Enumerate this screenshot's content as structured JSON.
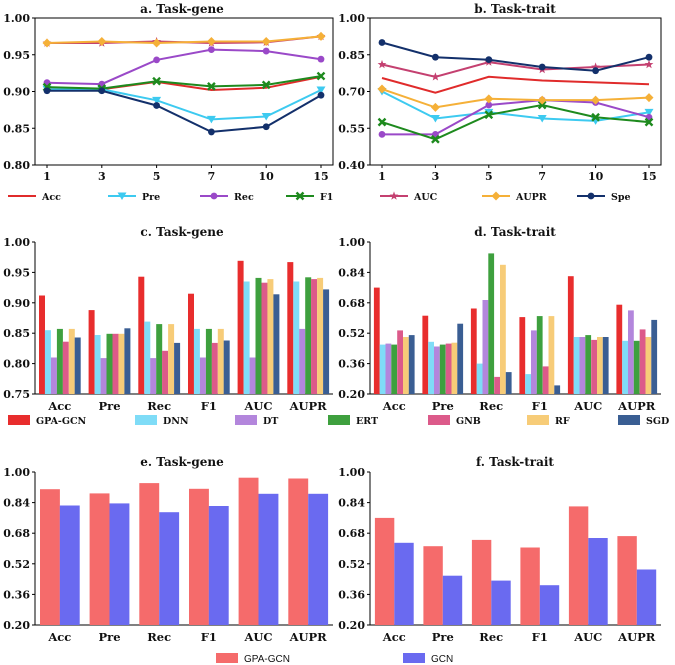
{
  "colors": {
    "Acc": "#e02b2b",
    "Pre": "#3dcaf0",
    "Rec": "#9a49c8",
    "F1": "#1e8a1e",
    "AUC": "#c44070",
    "AUPR": "#f5b038",
    "Spe": "#13306b",
    "GPA-GCN": "#e82d2d",
    "DNN": "#7fdcf7",
    "DT": "#b386dc",
    "ERT": "#3ea03e",
    "GNB": "#dc5a8a",
    "RF": "#f7cc78",
    "SGD": "#3a5e93",
    "GPA-GCN-f": "#f56b6b",
    "GCN": "#6a6af0"
  },
  "line_legend": {
    "items": [
      {
        "name": "Acc",
        "marker": "none"
      },
      {
        "name": "Pre",
        "marker": "triangle-down"
      },
      {
        "name": "Rec",
        "marker": "circle"
      },
      {
        "name": "F1",
        "marker": "x"
      },
      {
        "name": "AUC",
        "marker": "star"
      },
      {
        "name": "AUPR",
        "marker": "diamond"
      },
      {
        "name": "Spe",
        "marker": "circle"
      }
    ]
  },
  "bar_legend_7": [
    "GPA-GCN",
    "DNN",
    "DT",
    "ERT",
    "GNB",
    "RF",
    "SGD"
  ],
  "bar_legend_2": [
    "GPA-GCN",
    "GCN"
  ],
  "chart_data": [
    {
      "id": "a",
      "type": "line",
      "title": "a. Task-gene",
      "x": [
        "1",
        "3",
        "5",
        "7",
        "10",
        "15"
      ],
      "ylim": [
        0.8,
        1.0
      ],
      "yticks": [
        "0.80",
        "0.85",
        "0.90",
        "0.95",
        "1.00"
      ],
      "series": [
        {
          "name": "Acc",
          "values": [
            0.903,
            0.903,
            0.913,
            0.902,
            0.905,
            0.92
          ]
        },
        {
          "name": "Pre",
          "values": [
            0.903,
            0.903,
            0.888,
            0.862,
            0.866,
            0.902
          ]
        },
        {
          "name": "Rec",
          "values": [
            0.912,
            0.91,
            0.943,
            0.957,
            0.955,
            0.944
          ]
        },
        {
          "name": "F1",
          "values": [
            0.906,
            0.904,
            0.914,
            0.907,
            0.909,
            0.921
          ]
        },
        {
          "name": "AUC",
          "values": [
            0.966,
            0.966,
            0.968,
            0.966,
            0.967,
            0.975
          ]
        },
        {
          "name": "AUPR",
          "values": [
            0.966,
            0.968,
            0.966,
            0.968,
            0.968,
            0.975
          ]
        },
        {
          "name": "Spe",
          "values": [
            0.901,
            0.901,
            0.881,
            0.845,
            0.852,
            0.895
          ]
        }
      ]
    },
    {
      "id": "b",
      "type": "line",
      "title": "b. Task-trait",
      "x": [
        "1",
        "3",
        "5",
        "7",
        "10",
        "15"
      ],
      "ylim": [
        0.4,
        1.0
      ],
      "yticks": [
        "0.40",
        "0.55",
        "0.70",
        "0.85",
        "1.00"
      ],
      "series": [
        {
          "name": "Acc",
          "values": [
            0.755,
            0.695,
            0.76,
            0.745,
            0.737,
            0.73
          ]
        },
        {
          "name": "Pre",
          "values": [
            0.7,
            0.59,
            0.615,
            0.59,
            0.58,
            0.615
          ]
        },
        {
          "name": "Rec",
          "values": [
            0.525,
            0.525,
            0.645,
            0.665,
            0.655,
            0.595
          ]
        },
        {
          "name": "F1",
          "values": [
            0.575,
            0.505,
            0.605,
            0.645,
            0.595,
            0.575
          ]
        },
        {
          "name": "AUC",
          "values": [
            0.81,
            0.76,
            0.82,
            0.79,
            0.8,
            0.81
          ]
        },
        {
          "name": "AUPR",
          "values": [
            0.71,
            0.635,
            0.67,
            0.665,
            0.665,
            0.675
          ]
        },
        {
          "name": "Spe",
          "values": [
            0.9,
            0.84,
            0.83,
            0.8,
            0.785,
            0.84
          ]
        }
      ]
    },
    {
      "id": "c",
      "type": "bar",
      "title": "c. Task-gene",
      "categories": [
        "Acc",
        "Pre",
        "Rec",
        "F1",
        "AUC",
        "AUPR"
      ],
      "ylim": [
        0.75,
        1.0
      ],
      "yticks": [
        "0.75",
        "0.80",
        "0.85",
        "0.90",
        "0.95",
        "1.00"
      ],
      "series": [
        {
          "name": "GPA-GCN",
          "values": [
            0.912,
            0.888,
            0.943,
            0.915,
            0.969,
            0.967
          ]
        },
        {
          "name": "DNN",
          "values": [
            0.855,
            0.847,
            0.869,
            0.857,
            0.935,
            0.935
          ]
        },
        {
          "name": "DT",
          "values": [
            0.81,
            0.809,
            0.809,
            0.81,
            0.81,
            0.857
          ]
        },
        {
          "name": "ERT",
          "values": [
            0.857,
            0.849,
            0.865,
            0.857,
            0.941,
            0.942
          ]
        },
        {
          "name": "GNB",
          "values": [
            0.836,
            0.849,
            0.821,
            0.834,
            0.933,
            0.939
          ]
        },
        {
          "name": "RF",
          "values": [
            0.857,
            0.849,
            0.865,
            0.857,
            0.939,
            0.941
          ]
        },
        {
          "name": "SGD",
          "values": [
            0.843,
            0.858,
            0.834,
            0.838,
            0.914,
            0.922
          ]
        }
      ]
    },
    {
      "id": "d",
      "type": "bar",
      "title": "d. Task-trait",
      "categories": [
        "Acc",
        "Pre",
        "Rec",
        "F1",
        "AUC",
        "AUPR"
      ],
      "ylim": [
        0.2,
        1.0
      ],
      "yticks": [
        "0.20",
        "0.36",
        "0.52",
        "0.68",
        "0.84",
        "1.00"
      ],
      "series": [
        {
          "name": "GPA-GCN",
          "values": [
            0.76,
            0.612,
            0.65,
            0.605,
            0.82,
            0.67
          ]
        },
        {
          "name": "DNN",
          "values": [
            0.46,
            0.475,
            0.36,
            0.305,
            0.5,
            0.48
          ]
        },
        {
          "name": "DT",
          "values": [
            0.465,
            0.45,
            0.695,
            0.535,
            0.5,
            0.64
          ]
        },
        {
          "name": "ERT",
          "values": [
            0.46,
            0.46,
            0.94,
            0.61,
            0.51,
            0.48
          ]
        },
        {
          "name": "GNB",
          "values": [
            0.535,
            0.465,
            0.29,
            0.345,
            0.485,
            0.54
          ]
        },
        {
          "name": "RF",
          "values": [
            0.5,
            0.47,
            0.88,
            0.61,
            0.5,
            0.5
          ]
        },
        {
          "name": "SGD",
          "values": [
            0.51,
            0.57,
            0.315,
            0.245,
            0.5,
            0.59
          ]
        }
      ]
    },
    {
      "id": "e",
      "type": "bar",
      "title": "e. Task-gene",
      "categories": [
        "Acc",
        "Pre",
        "Rec",
        "F1",
        "AUC",
        "AUPR"
      ],
      "ylim": [
        0.2,
        1.0
      ],
      "yticks": [
        "0.20",
        "0.36",
        "0.52",
        "0.68",
        "0.84",
        "1.00"
      ],
      "series": [
        {
          "name": "GPA-GCN",
          "values": [
            0.91,
            0.888,
            0.942,
            0.912,
            0.97,
            0.966
          ]
        },
        {
          "name": "GCN",
          "values": [
            0.825,
            0.836,
            0.79,
            0.822,
            0.886,
            0.886
          ]
        }
      ]
    },
    {
      "id": "f",
      "type": "bar",
      "title": "f. Task-trait",
      "categories": [
        "Acc",
        "Pre",
        "Rec",
        "F1",
        "AUC",
        "AUPR"
      ],
      "ylim": [
        0.2,
        1.0
      ],
      "yticks": [
        "0.20",
        "0.36",
        "0.52",
        "0.68",
        "0.84",
        "1.00"
      ],
      "series": [
        {
          "name": "GPA-GCN",
          "values": [
            0.76,
            0.612,
            0.645,
            0.605,
            0.82,
            0.665
          ]
        },
        {
          "name": "GCN",
          "values": [
            0.63,
            0.458,
            0.432,
            0.408,
            0.655,
            0.49
          ]
        }
      ]
    }
  ]
}
